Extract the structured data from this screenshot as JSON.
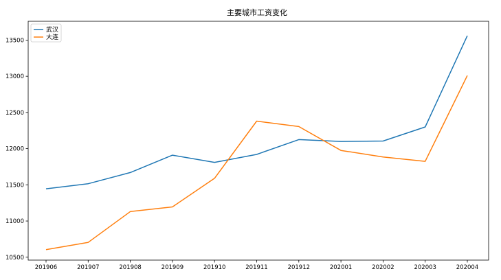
{
  "chart_data": {
    "type": "line",
    "title": "主要城市工资变化",
    "xlabel": "",
    "ylabel": "",
    "categories": [
      "201906",
      "201907",
      "201908",
      "201909",
      "201910",
      "201911",
      "201912",
      "202001",
      "202002",
      "202003",
      "202004"
    ],
    "yticks": [
      10500,
      11000,
      11500,
      12000,
      12500,
      13000,
      13500
    ],
    "ylim": [
      10460,
      13760
    ],
    "grid": false,
    "legend_position": "top-left",
    "series": [
      {
        "name": "武汉",
        "color": "#1f77b4",
        "values": [
          11445,
          11515,
          11670,
          11910,
          11810,
          11920,
          12125,
          12100,
          12105,
          12300,
          13560
        ]
      },
      {
        "name": "大连",
        "color": "#ff7f0e",
        "values": [
          10605,
          10705,
          11130,
          11195,
          11590,
          12380,
          12305,
          11975,
          11885,
          11825,
          13010
        ]
      }
    ]
  }
}
